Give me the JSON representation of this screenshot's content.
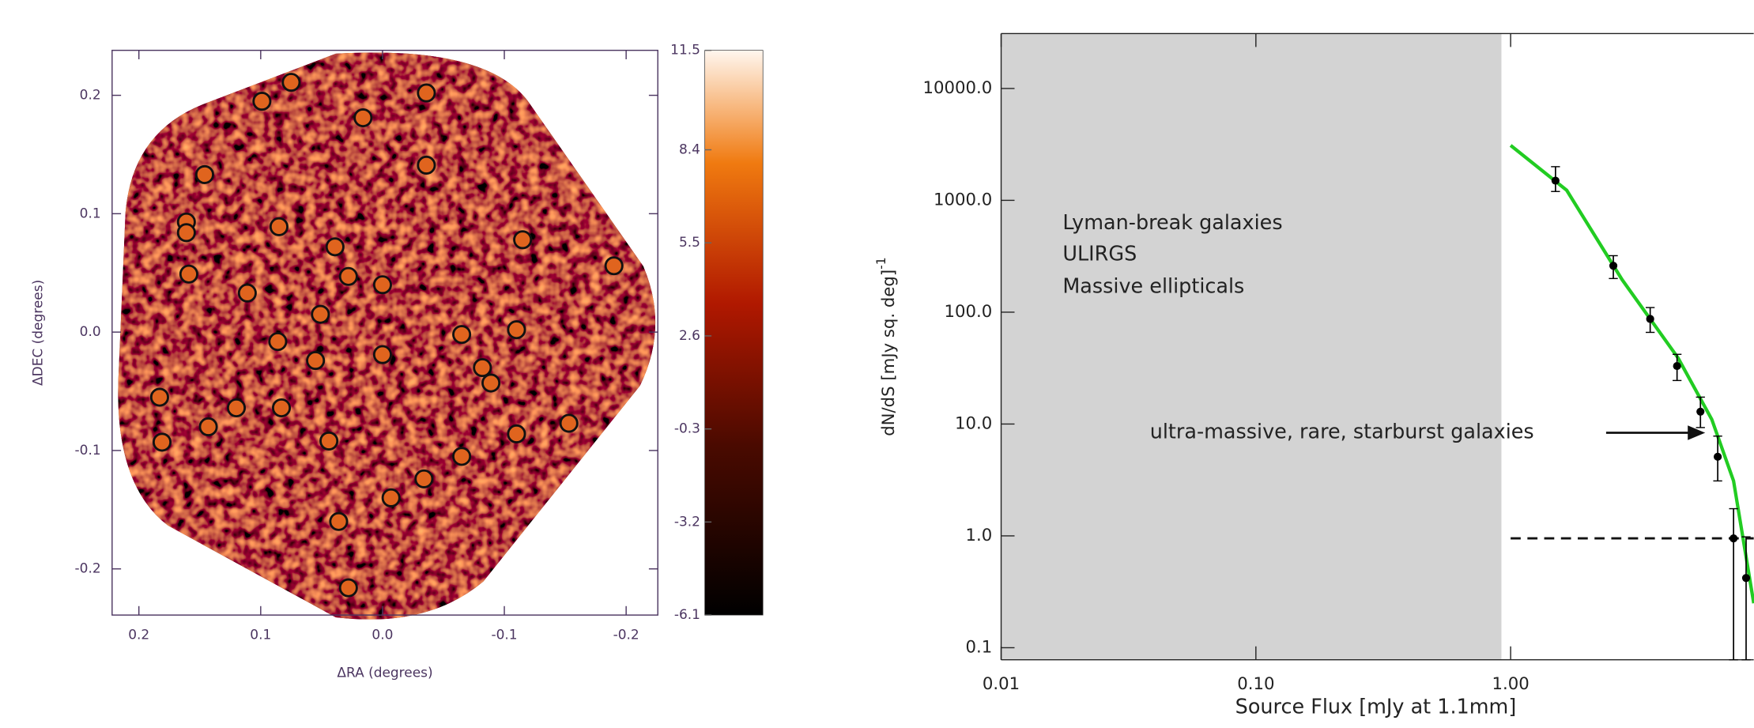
{
  "chart_data": [
    {
      "type": "scatter",
      "xlabel": "ΔRA (degrees)",
      "ylabel": "ΔDEC (degrees)",
      "xlim": [
        0.222,
        -0.226
      ],
      "ylim": [
        -0.239,
        0.238
      ],
      "xticks": [
        0.2,
        0.1,
        {
          "value": 0,
          "label": "0.0"
        },
        -0.1,
        -0.2
      ],
      "yticks": [
        0.2,
        0.1,
        {
          "value": 0,
          "label": "0.0"
        },
        -0.1,
        -0.2
      ],
      "colorbar_lim": [
        -6.1,
        11.5
      ],
      "colorbar_ticks": [
        11.5,
        8.4,
        5.5,
        2.6,
        -0.3,
        -3.2,
        -6.1
      ],
      "marker_color": "#e0641e",
      "x": [
        0.075,
        0.099,
        0.016,
        -0.036,
        -0.036,
        0.146,
        0.161,
        0.161,
        0.085,
        0.039,
        -0.115,
        0.159,
        0.028,
        0.0,
        0.111,
        -0.19,
        0.051,
        -0.065,
        -0.11,
        0.086,
        0.055,
        0.0,
        -0.082,
        -0.089,
        0.183,
        0.12,
        0.083,
        0.143,
        0.044,
        -0.11,
        -0.153,
        0.181,
        -0.065,
        -0.034,
        -0.007,
        0.036,
        0.028
      ],
      "values": [
        0.211,
        0.195,
        0.181,
        0.202,
        0.141,
        0.133,
        0.093,
        0.084,
        0.089,
        0.072,
        0.078,
        0.049,
        0.047,
        0.04,
        0.033,
        0.056,
        0.015,
        -0.002,
        0.002,
        -0.008,
        -0.024,
        -0.019,
        -0.03,
        -0.043,
        -0.055,
        -0.064,
        -0.064,
        -0.08,
        -0.092,
        -0.086,
        -0.077,
        -0.093,
        -0.105,
        -0.124,
        -0.14,
        -0.16,
        -0.216
      ]
    },
    {
      "type": "line",
      "xlabel": "Source Flux [mJy at 1.1mm]",
      "ylabel": "dN/dS [mJy sq. deg]",
      "ylabel_sup": "-1",
      "log_x": true,
      "log_y": true,
      "xlim": [
        0.01,
        9
      ],
      "ylim": [
        0.078,
        31000
      ],
      "xticks": [
        {
          "value": 0.01,
          "label": "0.01"
        },
        {
          "value": 0.1,
          "label": "0.10"
        },
        {
          "value": 1,
          "label": "1.00"
        }
      ],
      "yticks": [
        0.1,
        {
          "value": 1,
          "label": "1.0"
        },
        {
          "value": 10,
          "label": "10.0"
        },
        {
          "value": 100,
          "label": "100.0"
        },
        {
          "value": 1000,
          "label": "1000.0"
        },
        {
          "value": 10000,
          "label": "10000.0"
        }
      ],
      "shade_x": [
        0.01,
        0.92
      ],
      "shade_color": "#d3d3d3",
      "hline": {
        "y": 0.95,
        "x_from": 1.0
      },
      "annotations": [
        "Lyman-break galaxies",
        "ULIRGS",
        "Massive ellipticals",
        "ultra-massive, rare, starburst galaxies"
      ],
      "series": [
        {
          "color": "#22cc22",
          "x": [
            1.0,
            1.66,
            2.74,
            4.54,
            6.16,
            7.5,
            9.0
          ],
          "values": [
            3100,
            1230,
            195,
            39,
            11,
            3.1,
            0.25
          ]
        },
        {
          "color": "#000000",
          "markers": true,
          "x": [
            1.5,
            2.53,
            3.53,
            4.5,
            5.56,
            6.5,
            7.5,
            8.4
          ],
          "values": [
            1500,
            260,
            87,
            33,
            12.9,
            5.1,
            0.95,
            0.42
          ],
          "error_high": [
            500,
            60,
            23,
            9,
            4.5,
            2.7,
            0.8,
            0.56
          ],
          "error_low": [
            300,
            60,
            21,
            8.5,
            3.6,
            2.0,
            0.9,
            0.4
          ]
        }
      ]
    }
  ]
}
